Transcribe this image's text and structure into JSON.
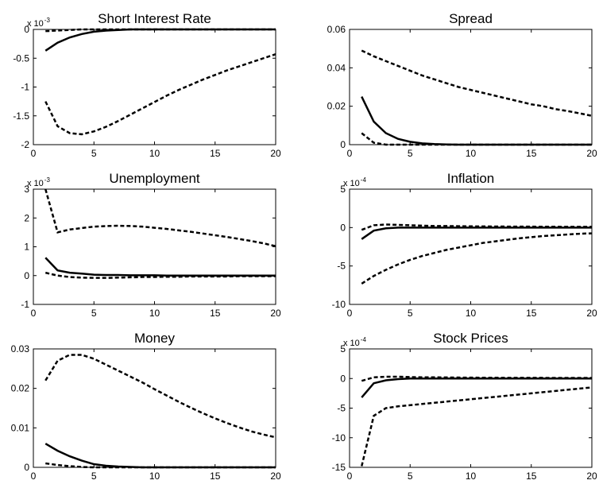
{
  "chart_data": [
    {
      "type": "line",
      "title": "Short Interest Rate",
      "y_exponent_label": {
        "base": "x 10",
        "power": "-3"
      },
      "x": [
        1,
        2,
        3,
        4,
        5,
        6,
        7,
        8,
        9,
        10,
        11,
        12,
        13,
        14,
        15,
        16,
        17,
        18,
        19,
        20
      ],
      "xlim": [
        0,
        20
      ],
      "xticks": [
        0,
        5,
        10,
        15,
        20
      ],
      "ylim": [
        -2,
        0
      ],
      "yticks": [
        -2,
        -1.5,
        -1,
        -0.5,
        0
      ],
      "series": [
        {
          "color": "#000000",
          "dashed": false,
          "values": [
            -0.37,
            -0.23,
            -0.14,
            -0.08,
            -0.04,
            -0.02,
            -0.01,
            0,
            0,
            0,
            0,
            0,
            0,
            0,
            0,
            0,
            0,
            0,
            0,
            0
          ]
        },
        {
          "color": "#000000",
          "dashed": true,
          "values": [
            -1.25,
            -1.68,
            -1.8,
            -1.82,
            -1.77,
            -1.69,
            -1.59,
            -1.48,
            -1.37,
            -1.26,
            -1.15,
            -1.05,
            -0.96,
            -0.87,
            -0.79,
            -0.71,
            -0.64,
            -0.57,
            -0.5,
            -0.43
          ]
        },
        {
          "color": "#000000",
          "dashed": true,
          "values": [
            -0.03,
            -0.02,
            -0.01,
            0,
            0,
            0,
            0,
            0,
            0,
            0,
            0,
            0,
            0,
            0,
            0,
            0,
            0,
            0,
            0,
            0
          ]
        }
      ]
    },
    {
      "type": "line",
      "title": "Spread",
      "x": [
        1,
        2,
        3,
        4,
        5,
        6,
        7,
        8,
        9,
        10,
        11,
        12,
        13,
        14,
        15,
        16,
        17,
        18,
        19,
        20
      ],
      "xlim": [
        0,
        20
      ],
      "xticks": [
        0,
        5,
        10,
        15,
        20
      ],
      "ylim": [
        0,
        0.06
      ],
      "yticks": [
        0,
        0.02,
        0.04,
        0.06
      ],
      "series": [
        {
          "color": "#000000",
          "dashed": false,
          "values": [
            0.025,
            0.012,
            0.006,
            0.003,
            0.0015,
            0.0007,
            0.0003,
            0.0001,
            0,
            0,
            0,
            0,
            0,
            0,
            0,
            0,
            0,
            0,
            0,
            0
          ]
        },
        {
          "color": "#000000",
          "dashed": true,
          "values": [
            0.049,
            0.046,
            0.0435,
            0.041,
            0.0385,
            0.036,
            0.034,
            0.032,
            0.03,
            0.0285,
            0.027,
            0.0255,
            0.024,
            0.0225,
            0.021,
            0.02,
            0.0185,
            0.0175,
            0.0163,
            0.015
          ]
        },
        {
          "color": "#000000",
          "dashed": true,
          "values": [
            0.006,
            0.001,
            0,
            0,
            0,
            0,
            0,
            0,
            0,
            0,
            0,
            0,
            0,
            0,
            0,
            0,
            0,
            0,
            0,
            0
          ]
        }
      ]
    },
    {
      "type": "line",
      "title": "Unemployment",
      "y_exponent_label": {
        "base": "x 10",
        "power": "-3"
      },
      "x": [
        1,
        2,
        3,
        4,
        5,
        6,
        7,
        8,
        9,
        10,
        11,
        12,
        13,
        14,
        15,
        16,
        17,
        18,
        19,
        20
      ],
      "xlim": [
        0,
        20
      ],
      "xticks": [
        0,
        5,
        10,
        15,
        20
      ],
      "ylim": [
        -1,
        3
      ],
      "yticks": [
        -1,
        0,
        1,
        2,
        3
      ],
      "series": [
        {
          "color": "#000000",
          "dashed": false,
          "values": [
            0.62,
            0.18,
            0.1,
            0.07,
            0.03,
            0.02,
            0.02,
            0.01,
            0.01,
            0.01,
            0,
            0,
            0,
            0,
            0,
            0,
            0,
            0,
            0,
            0
          ]
        },
        {
          "color": "#000000",
          "dashed": true,
          "values": [
            3.0,
            1.5,
            1.6,
            1.65,
            1.7,
            1.72,
            1.73,
            1.72,
            1.7,
            1.66,
            1.62,
            1.57,
            1.52,
            1.46,
            1.4,
            1.34,
            1.27,
            1.2,
            1.12,
            1.02
          ]
        },
        {
          "color": "#000000",
          "dashed": true,
          "values": [
            0.1,
            0,
            -0.05,
            -0.07,
            -0.08,
            -0.08,
            -0.07,
            -0.06,
            -0.05,
            -0.05,
            -0.04,
            -0.04,
            -0.03,
            -0.03,
            -0.03,
            -0.03,
            -0.02,
            -0.02,
            -0.02,
            -0.02
          ]
        }
      ]
    },
    {
      "type": "line",
      "title": "Inflation",
      "y_exponent_label": {
        "base": "x 10",
        "power": "-4"
      },
      "x": [
        1,
        2,
        3,
        4,
        5,
        6,
        7,
        8,
        9,
        10,
        11,
        12,
        13,
        14,
        15,
        16,
        17,
        18,
        19,
        20
      ],
      "xlim": [
        0,
        20
      ],
      "xticks": [
        0,
        5,
        10,
        15,
        20
      ],
      "ylim": [
        -10,
        5
      ],
      "yticks": [
        -10,
        -5,
        0,
        5
      ],
      "series": [
        {
          "color": "#000000",
          "dashed": false,
          "values": [
            -1.5,
            -0.4,
            -0.1,
            0,
            0,
            0,
            0,
            0,
            0,
            0,
            0,
            0,
            0,
            0,
            0,
            0,
            0,
            0,
            0,
            0
          ]
        },
        {
          "color": "#000000",
          "dashed": true,
          "values": [
            -0.3,
            0.3,
            0.4,
            0.35,
            0.3,
            0.25,
            0.2,
            0.2,
            0.18,
            0.16,
            0.15,
            0.14,
            0.13,
            0.12,
            0.12,
            0.11,
            0.11,
            0.1,
            0.1,
            0.1
          ]
        },
        {
          "color": "#000000",
          "dashed": true,
          "values": [
            -7.3,
            -6.3,
            -5.5,
            -4.8,
            -4.2,
            -3.7,
            -3.3,
            -2.9,
            -2.6,
            -2.3,
            -2.0,
            -1.8,
            -1.6,
            -1.4,
            -1.25,
            -1.1,
            -1.0,
            -0.9,
            -0.8,
            -0.75
          ]
        }
      ]
    },
    {
      "type": "line",
      "title": "Money",
      "x": [
        1,
        2,
        3,
        4,
        5,
        6,
        7,
        8,
        9,
        10,
        11,
        12,
        13,
        14,
        15,
        16,
        17,
        18,
        19,
        20
      ],
      "xlim": [
        0,
        20
      ],
      "xticks": [
        0,
        5,
        10,
        15,
        20
      ],
      "ylim": [
        0,
        0.03
      ],
      "yticks": [
        0,
        0.01,
        0.02,
        0.03
      ],
      "series": [
        {
          "color": "#000000",
          "dashed": false,
          "values": [
            0.006,
            0.0042,
            0.0028,
            0.0017,
            0.0008,
            0.0004,
            0.0002,
            0.0001,
            0,
            0,
            0,
            0,
            0,
            0,
            0,
            0,
            0,
            0,
            0,
            0
          ]
        },
        {
          "color": "#000000",
          "dashed": true,
          "values": [
            0.022,
            0.027,
            0.0285,
            0.0285,
            0.0275,
            0.026,
            0.0245,
            0.023,
            0.0215,
            0.0198,
            0.0182,
            0.0166,
            0.0151,
            0.0137,
            0.0124,
            0.0112,
            0.0101,
            0.0091,
            0.0083,
            0.0076
          ]
        },
        {
          "color": "#000000",
          "dashed": true,
          "values": [
            0.001,
            0.0006,
            0.0003,
            0.0001,
            0,
            0,
            0,
            0,
            0,
            0,
            0,
            0,
            0,
            0,
            0,
            0,
            0,
            0,
            0,
            0
          ]
        }
      ]
    },
    {
      "type": "line",
      "title": "Stock Prices",
      "y_exponent_label": {
        "base": "x 10",
        "power": "-4"
      },
      "x": [
        1,
        2,
        3,
        4,
        5,
        6,
        7,
        8,
        9,
        10,
        11,
        12,
        13,
        14,
        15,
        16,
        17,
        18,
        19,
        20
      ],
      "xlim": [
        0,
        20
      ],
      "xticks": [
        0,
        5,
        10,
        15,
        20
      ],
      "ylim": [
        -15,
        5
      ],
      "yticks": [
        -15,
        -10,
        -5,
        0,
        5
      ],
      "series": [
        {
          "color": "#000000",
          "dashed": false,
          "values": [
            -3.2,
            -0.8,
            -0.3,
            -0.1,
            0,
            0,
            0,
            0,
            0,
            0,
            0,
            0,
            0,
            0,
            0,
            0,
            0,
            0,
            0,
            0
          ]
        },
        {
          "color": "#000000",
          "dashed": true,
          "values": [
            -14.8,
            -6.3,
            -5.0,
            -4.7,
            -4.5,
            -4.3,
            -4.1,
            -3.9,
            -3.7,
            -3.5,
            -3.3,
            -3.1,
            -2.9,
            -2.7,
            -2.5,
            -2.3,
            -2.1,
            -1.9,
            -1.7,
            -1.5
          ]
        },
        {
          "color": "#000000",
          "dashed": true,
          "values": [
            -0.4,
            0.2,
            0.3,
            0.3,
            0.25,
            0.2,
            0.2,
            0.18,
            0.16,
            0.15,
            0.14,
            0.13,
            0.12,
            0.12,
            0.11,
            0.11,
            0.1,
            0.1,
            0.1,
            0.1
          ]
        }
      ]
    }
  ]
}
